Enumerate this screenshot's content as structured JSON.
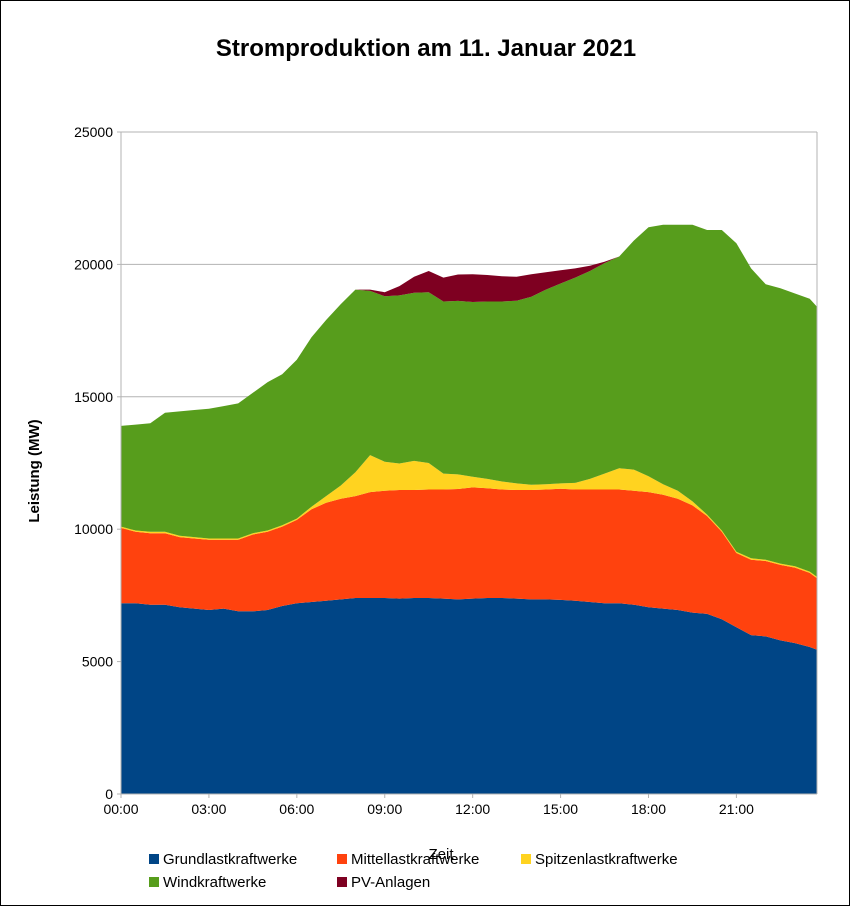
{
  "chart_data": {
    "type": "area",
    "stacked": true,
    "title": "Stromproduktion am 11. Januar 2021",
    "xlabel": "Zeit",
    "ylabel": "Leistung (MW)",
    "ylim": [
      0,
      25000
    ],
    "yticks": [
      0,
      5000,
      10000,
      15000,
      20000,
      25000
    ],
    "xticks": [
      "00:00",
      "03:00",
      "06:00",
      "09:00",
      "12:00",
      "15:00",
      "18:00",
      "21:00"
    ],
    "xlim_hours": [
      0,
      23.75
    ],
    "grid": "horizontal",
    "legend_position": "bottom",
    "x_hours": [
      0,
      0.5,
      1,
      1.5,
      2,
      2.5,
      3,
      3.5,
      4,
      4.5,
      5,
      5.5,
      6,
      6.5,
      7,
      7.5,
      8,
      8.5,
      9,
      9.5,
      10,
      10.5,
      11,
      11.5,
      12,
      12.5,
      13,
      13.5,
      14,
      14.5,
      15,
      15.5,
      16,
      16.5,
      17,
      17.5,
      18,
      18.5,
      19,
      19.5,
      20,
      20.5,
      21,
      21.5,
      22,
      22.5,
      23,
      23.5,
      23.75
    ],
    "series": [
      {
        "name": "Grundlastkraftwerke",
        "color": "#004586",
        "values": [
          7200,
          7200,
          7150,
          7150,
          7050,
          7000,
          6950,
          7000,
          6900,
          6900,
          6950,
          7100,
          7200,
          7250,
          7300,
          7350,
          7400,
          7400,
          7400,
          7380,
          7400,
          7400,
          7380,
          7350,
          7380,
          7400,
          7400,
          7380,
          7350,
          7350,
          7330,
          7300,
          7250,
          7200,
          7200,
          7150,
          7050,
          7000,
          6950,
          6850,
          6800,
          6600,
          6300,
          6000,
          5950,
          5800,
          5700,
          5550,
          5450
        ]
      },
      {
        "name": "Mittellastkraftwerke",
        "color": "#ff420e",
        "values": [
          2850,
          2700,
          2700,
          2700,
          2650,
          2650,
          2650,
          2600,
          2700,
          2900,
          2950,
          3000,
          3150,
          3500,
          3700,
          3800,
          3850,
          4000,
          4050,
          4100,
          4080,
          4100,
          4120,
          4170,
          4200,
          4150,
          4100,
          4100,
          4130,
          4150,
          4200,
          4200,
          4250,
          4300,
          4300,
          4300,
          4350,
          4300,
          4200,
          4050,
          3700,
          3300,
          2800,
          2850,
          2850,
          2850,
          2850,
          2800,
          2700
        ]
      },
      {
        "name": "Spitzenlastkraftwerke",
        "color": "#ffd320",
        "values": [
          50,
          50,
          50,
          50,
          50,
          50,
          50,
          50,
          50,
          50,
          50,
          50,
          50,
          100,
          250,
          500,
          900,
          1400,
          1100,
          1000,
          1100,
          1000,
          600,
          550,
          400,
          350,
          300,
          250,
          200,
          200,
          200,
          250,
          400,
          600,
          800,
          800,
          600,
          400,
          300,
          150,
          50,
          50,
          50,
          50,
          50,
          50,
          50,
          50,
          50
        ]
      },
      {
        "name": "Windkraftwerke",
        "color": "#579d1c",
        "values": [
          3800,
          4000,
          4100,
          4500,
          4700,
          4800,
          4900,
          5000,
          5100,
          5300,
          5600,
          5700,
          6000,
          6400,
          6650,
          6850,
          6900,
          6200,
          6250,
          6350,
          6350,
          6450,
          6500,
          6550,
          6600,
          6700,
          6800,
          6900,
          7100,
          7350,
          7550,
          7750,
          7850,
          7950,
          8000,
          8650,
          9400,
          9800,
          10050,
          10450,
          10750,
          11350,
          11650,
          10950,
          10400,
          10400,
          10300,
          10300,
          10200
        ]
      },
      {
        "name": "PV-Anlagen",
        "color": "#7e0021",
        "values": [
          0,
          0,
          0,
          0,
          0,
          0,
          0,
          0,
          0,
          0,
          0,
          0,
          0,
          0,
          0,
          0,
          0,
          50,
          150,
          350,
          600,
          800,
          900,
          1000,
          1050,
          1000,
          950,
          900,
          850,
          650,
          500,
          350,
          200,
          50,
          0,
          0,
          0,
          0,
          0,
          0,
          0,
          0,
          0,
          0,
          0,
          0,
          0,
          0,
          0
        ]
      }
    ]
  }
}
